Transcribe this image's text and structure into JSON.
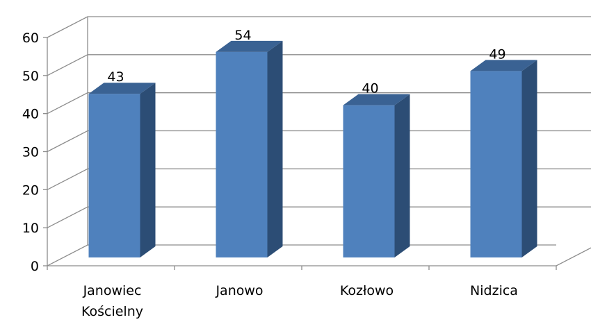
{
  "chart_data": {
    "type": "bar",
    "categories": [
      "Janowiec Kościelny",
      "Janowo",
      "Kozłowo",
      "Nidzica"
    ],
    "category_lines": [
      [
        "Janowiec",
        "Kościelny"
      ],
      [
        "Janowo"
      ],
      [
        "Kozłowo"
      ],
      [
        "Nidzica"
      ]
    ],
    "values": [
      43,
      54,
      40,
      49
    ],
    "y_ticks": [
      "0",
      "10",
      "20",
      "30",
      "40",
      "50",
      "60"
    ],
    "ylim": [
      0,
      60
    ],
    "grid": true,
    "style": "3d-column",
    "colors": {
      "front": "#4f81bd",
      "side": "#2c4d75",
      "top": "#3a6293",
      "grid": "#8c8c8c"
    }
  }
}
